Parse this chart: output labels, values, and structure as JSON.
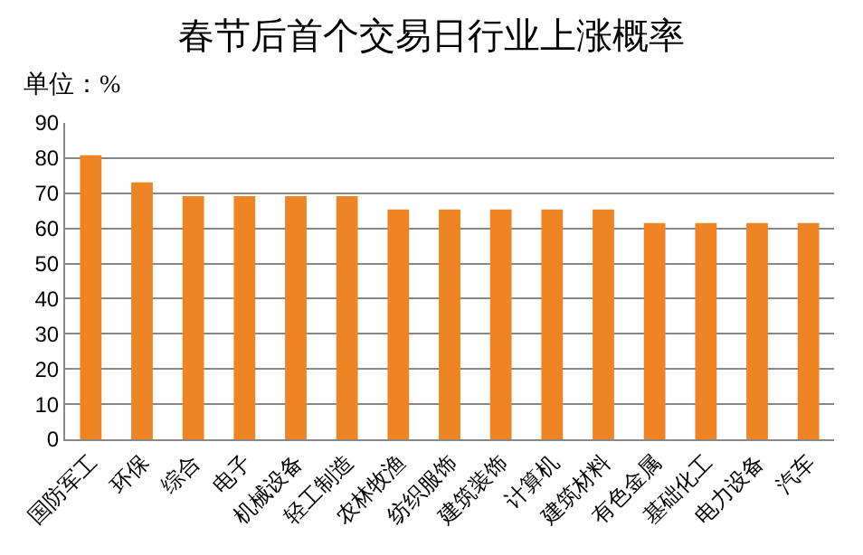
{
  "chart_data": {
    "type": "bar",
    "title": "春节后首个交易日行业上涨概率",
    "ylabel": "单位：%",
    "categories": [
      "国防军工",
      "环保",
      "综合",
      "电子",
      "机械设备",
      "轻工制造",
      "农林牧渔",
      "纺织服饰",
      "建筑装饰",
      "计算机",
      "建筑材料",
      "有色金属",
      "基础化工",
      "电力设备",
      "汽车"
    ],
    "values": [
      80.8,
      73.1,
      69.2,
      69.2,
      69.2,
      69.2,
      65.4,
      65.4,
      65.4,
      65.4,
      65.4,
      61.5,
      61.5,
      61.5,
      61.5
    ],
    "color": "#ee8424",
    "ylim": [
      0,
      90
    ],
    "yticks": [
      0,
      10,
      20,
      30,
      40,
      50,
      60,
      70,
      80,
      90
    ],
    "grid": "y"
  }
}
